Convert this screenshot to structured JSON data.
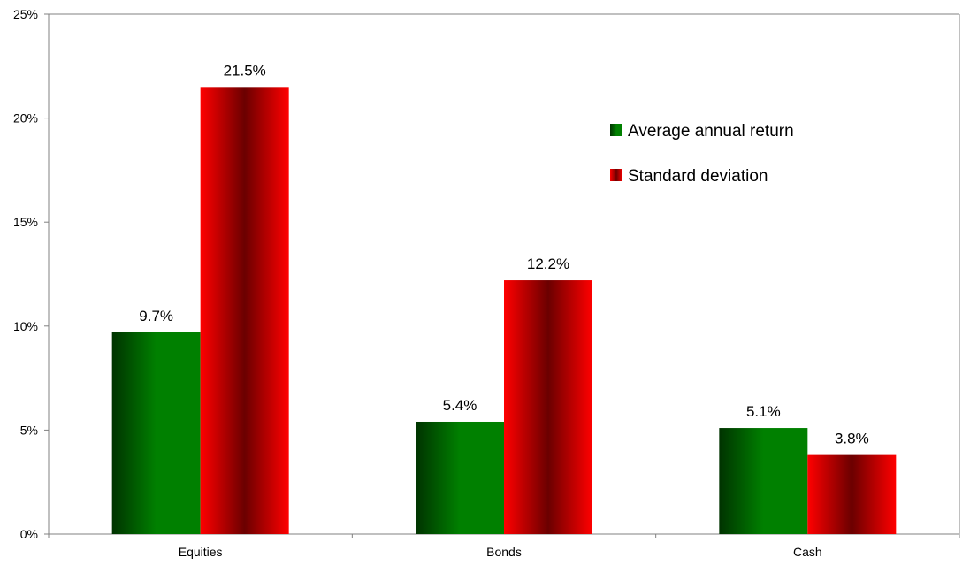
{
  "chart_data": {
    "type": "bar",
    "categories": [
      "Equities",
      "Bonds",
      "Cash"
    ],
    "series": [
      {
        "name": "Average annual return",
        "values": [
          9.7,
          5.4,
          5.1
        ],
        "labels": [
          "9.7%",
          "5.4%",
          "5.1%"
        ],
        "color": "#008000",
        "dark": "#003300"
      },
      {
        "name": "Standard deviation",
        "values": [
          21.5,
          12.2,
          3.8
        ],
        "labels": [
          "21.5%",
          "12.2%",
          "3.8%"
        ],
        "color": "#ff0000",
        "dark": "#6b0000"
      }
    ],
    "yticks": [
      0,
      5,
      10,
      15,
      20,
      25
    ],
    "ytick_labels": [
      "0%",
      "5%",
      "10%",
      "15%",
      "20%",
      "25%"
    ],
    "ylim": [
      0,
      25
    ],
    "grid": false,
    "legend_position": "upper-right"
  }
}
